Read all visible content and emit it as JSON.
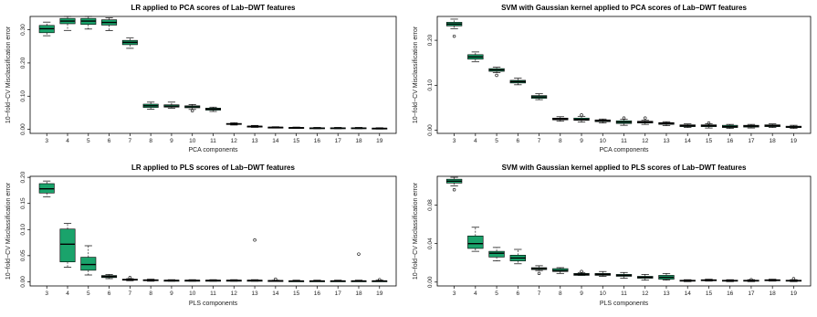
{
  "chart_data": [
    {
      "type": "boxplot",
      "title": "LR applied to PCA scores of Lab−DWT features",
      "xlabel": "PCA components",
      "ylabel": "10−fold−CV Misclassification error",
      "categories": [
        "3",
        "4",
        "5",
        "6",
        "7",
        "8",
        "9",
        "10",
        "11",
        "12",
        "13",
        "14",
        "15",
        "16",
        "17",
        "18",
        "19"
      ],
      "yticks": [
        0.0,
        0.1,
        0.2,
        0.3
      ],
      "ytick_labels": [
        "0.00",
        "0.10",
        "0.20",
        "0.30"
      ],
      "ylim": [
        -0.012,
        0.34
      ],
      "fill": "#1aa36b",
      "boxes": [
        {
          "x": "3",
          "min": 0.282,
          "q1": 0.291,
          "median": 0.303,
          "q3": 0.313,
          "max": 0.323,
          "outliers": []
        },
        {
          "x": "4",
          "min": 0.298,
          "q1": 0.318,
          "median": 0.326,
          "q3": 0.334,
          "max": 0.34,
          "outliers": []
        },
        {
          "x": "5",
          "min": 0.302,
          "q1": 0.316,
          "median": 0.326,
          "q3": 0.334,
          "max": 0.34,
          "outliers": []
        },
        {
          "x": "6",
          "min": 0.297,
          "q1": 0.314,
          "median": 0.322,
          "q3": 0.33,
          "max": 0.336,
          "outliers": []
        },
        {
          "x": "7",
          "min": 0.244,
          "q1": 0.255,
          "median": 0.262,
          "q3": 0.268,
          "max": 0.276,
          "outliers": []
        },
        {
          "x": "8",
          "min": 0.061,
          "q1": 0.066,
          "median": 0.071,
          "q3": 0.076,
          "max": 0.082,
          "outliers": []
        },
        {
          "x": "9",
          "min": 0.064,
          "q1": 0.067,
          "median": 0.07,
          "q3": 0.074,
          "max": 0.082,
          "outliers": []
        },
        {
          "x": "10",
          "min": 0.06,
          "q1": 0.065,
          "median": 0.068,
          "q3": 0.071,
          "max": 0.075,
          "outliers": [
            0.056
          ]
        },
        {
          "x": "11",
          "min": 0.054,
          "q1": 0.058,
          "median": 0.061,
          "q3": 0.064,
          "max": 0.067,
          "outliers": []
        },
        {
          "x": "12",
          "min": 0.013,
          "q1": 0.015,
          "median": 0.016,
          "q3": 0.018,
          "max": 0.02,
          "outliers": []
        },
        {
          "x": "13",
          "min": 0.006,
          "q1": 0.008,
          "median": 0.009,
          "q3": 0.01,
          "max": 0.012,
          "outliers": []
        },
        {
          "x": "14",
          "min": 0.004,
          "q1": 0.005,
          "median": 0.006,
          "q3": 0.007,
          "max": 0.008,
          "outliers": []
        },
        {
          "x": "15",
          "min": 0.003,
          "q1": 0.004,
          "median": 0.005,
          "q3": 0.006,
          "max": 0.007,
          "outliers": []
        },
        {
          "x": "16",
          "min": 0.002,
          "q1": 0.003,
          "median": 0.004,
          "q3": 0.005,
          "max": 0.006,
          "outliers": []
        },
        {
          "x": "17",
          "min": 0.002,
          "q1": 0.003,
          "median": 0.004,
          "q3": 0.005,
          "max": 0.006,
          "outliers": []
        },
        {
          "x": "18",
          "min": 0.002,
          "q1": 0.003,
          "median": 0.004,
          "q3": 0.005,
          "max": 0.006,
          "outliers": []
        },
        {
          "x": "19",
          "min": 0.001,
          "q1": 0.002,
          "median": 0.003,
          "q3": 0.004,
          "max": 0.005,
          "outliers": []
        }
      ]
    },
    {
      "type": "boxplot",
      "title": "SVM with Gaussian kernel applied to PCA scores of Lab−DWT features",
      "xlabel": "PCA components",
      "ylabel": "10−fold−CV Misclassification error",
      "categories": [
        "3",
        "4",
        "5",
        "6",
        "7",
        "8",
        "9",
        "10",
        "11",
        "12",
        "13",
        "14",
        "15",
        "16",
        "17",
        "18",
        "19"
      ],
      "yticks": [
        0.0,
        0.1,
        0.2
      ],
      "ytick_labels": [
        "0.00",
        "0.10",
        "0.20"
      ],
      "ylim": [
        -0.007,
        0.253
      ],
      "fill": "#1aa36b",
      "boxes": [
        {
          "x": "3",
          "min": 0.226,
          "q1": 0.232,
          "median": 0.236,
          "q3": 0.24,
          "max": 0.247,
          "outliers": [
            0.209
          ]
        },
        {
          "x": "4",
          "min": 0.152,
          "q1": 0.158,
          "median": 0.163,
          "q3": 0.168,
          "max": 0.174,
          "outliers": []
        },
        {
          "x": "5",
          "min": 0.128,
          "q1": 0.131,
          "median": 0.134,
          "q3": 0.137,
          "max": 0.14,
          "outliers": [
            0.122
          ]
        },
        {
          "x": "6",
          "min": 0.101,
          "q1": 0.105,
          "median": 0.108,
          "q3": 0.111,
          "max": 0.116,
          "outliers": []
        },
        {
          "x": "7",
          "min": 0.068,
          "q1": 0.071,
          "median": 0.074,
          "q3": 0.077,
          "max": 0.081,
          "outliers": []
        },
        {
          "x": "8",
          "min": 0.02,
          "q1": 0.023,
          "median": 0.025,
          "q3": 0.027,
          "max": 0.03,
          "outliers": []
        },
        {
          "x": "9",
          "min": 0.018,
          "q1": 0.022,
          "median": 0.024,
          "q3": 0.027,
          "max": 0.031,
          "outliers": [
            0.034
          ]
        },
        {
          "x": "10",
          "min": 0.016,
          "q1": 0.019,
          "median": 0.021,
          "q3": 0.023,
          "max": 0.025,
          "outliers": []
        },
        {
          "x": "11",
          "min": 0.011,
          "q1": 0.015,
          "median": 0.018,
          "q3": 0.021,
          "max": 0.024,
          "outliers": [
            0.027
          ]
        },
        {
          "x": "12",
          "min": 0.013,
          "q1": 0.016,
          "median": 0.018,
          "q3": 0.02,
          "max": 0.022,
          "outliers": [
            0.027
          ]
        },
        {
          "x": "13",
          "min": 0.01,
          "q1": 0.013,
          "median": 0.015,
          "q3": 0.017,
          "max": 0.019,
          "outliers": []
        },
        {
          "x": "14",
          "min": 0.006,
          "q1": 0.008,
          "median": 0.01,
          "q3": 0.012,
          "max": 0.014,
          "outliers": []
        },
        {
          "x": "15",
          "min": 0.005,
          "q1": 0.008,
          "median": 0.01,
          "q3": 0.012,
          "max": 0.014,
          "outliers": [
            0.016
          ]
        },
        {
          "x": "16",
          "min": 0.004,
          "q1": 0.006,
          "median": 0.008,
          "q3": 0.011,
          "max": 0.013,
          "outliers": []
        },
        {
          "x": "17",
          "min": 0.005,
          "q1": 0.007,
          "median": 0.009,
          "q3": 0.011,
          "max": 0.013,
          "outliers": []
        },
        {
          "x": "18",
          "min": 0.006,
          "q1": 0.008,
          "median": 0.01,
          "q3": 0.012,
          "max": 0.014,
          "outliers": []
        },
        {
          "x": "19",
          "min": 0.004,
          "q1": 0.006,
          "median": 0.007,
          "q3": 0.009,
          "max": 0.011,
          "outliers": []
        }
      ]
    },
    {
      "type": "boxplot",
      "title": "LR applied to PLS scores of Lab−DWT features",
      "xlabel": "PLS components",
      "ylabel": "10−fold−CV Misclassification error",
      "categories": [
        "3",
        "4",
        "5",
        "6",
        "7",
        "8",
        "9",
        "10",
        "11",
        "12",
        "13",
        "14",
        "15",
        "16",
        "17",
        "18",
        "19"
      ],
      "yticks": [
        0.0,
        0.05,
        0.1,
        0.15,
        0.2
      ],
      "ytick_labels": [
        "0.00",
        "0.05",
        "0.10",
        "0.15",
        "0.20"
      ],
      "ylim": [
        -0.008,
        0.202
      ],
      "fill": "#1aa36b",
      "boxes": [
        {
          "x": "3",
          "min": 0.163,
          "q1": 0.17,
          "median": 0.178,
          "q3": 0.188,
          "max": 0.193,
          "outliers": []
        },
        {
          "x": "4",
          "min": 0.028,
          "q1": 0.038,
          "median": 0.072,
          "q3": 0.101,
          "max": 0.112,
          "outliers": []
        },
        {
          "x": "5",
          "min": 0.013,
          "q1": 0.022,
          "median": 0.033,
          "q3": 0.047,
          "max": 0.069,
          "outliers": []
        },
        {
          "x": "6",
          "min": 0.006,
          "q1": 0.008,
          "median": 0.01,
          "q3": 0.012,
          "max": 0.014,
          "outliers": []
        },
        {
          "x": "7",
          "min": 0.002,
          "q1": 0.003,
          "median": 0.004,
          "q3": 0.005,
          "max": 0.006,
          "outliers": [
            0.008
          ]
        },
        {
          "x": "8",
          "min": 0.001,
          "q1": 0.002,
          "median": 0.003,
          "q3": 0.004,
          "max": 0.005,
          "outliers": []
        },
        {
          "x": "9",
          "min": 0.001,
          "q1": 0.002,
          "median": 0.0025,
          "q3": 0.003,
          "max": 0.004,
          "outliers": []
        },
        {
          "x": "10",
          "min": 0.001,
          "q1": 0.002,
          "median": 0.0025,
          "q3": 0.003,
          "max": 0.004,
          "outliers": []
        },
        {
          "x": "11",
          "min": 0.001,
          "q1": 0.002,
          "median": 0.0025,
          "q3": 0.003,
          "max": 0.004,
          "outliers": []
        },
        {
          "x": "12",
          "min": 0.001,
          "q1": 0.002,
          "median": 0.0025,
          "q3": 0.003,
          "max": 0.004,
          "outliers": []
        },
        {
          "x": "13",
          "min": 0.001,
          "q1": 0.002,
          "median": 0.0025,
          "q3": 0.003,
          "max": 0.004,
          "outliers": [
            0.08
          ]
        },
        {
          "x": "14",
          "min": 0.001,
          "q1": 0.0015,
          "median": 0.002,
          "q3": 0.0025,
          "max": 0.003,
          "outliers": [
            0.005
          ]
        },
        {
          "x": "15",
          "min": 0.0005,
          "q1": 0.001,
          "median": 0.0015,
          "q3": 0.002,
          "max": 0.003,
          "outliers": []
        },
        {
          "x": "16",
          "min": 0.0005,
          "q1": 0.001,
          "median": 0.0015,
          "q3": 0.002,
          "max": 0.003,
          "outliers": []
        },
        {
          "x": "17",
          "min": 0.0005,
          "q1": 0.001,
          "median": 0.0015,
          "q3": 0.002,
          "max": 0.003,
          "outliers": []
        },
        {
          "x": "18",
          "min": 0.0005,
          "q1": 0.001,
          "median": 0.0015,
          "q3": 0.002,
          "max": 0.003,
          "outliers": [
            0.053
          ]
        },
        {
          "x": "19",
          "min": 0.0005,
          "q1": 0.001,
          "median": 0.0015,
          "q3": 0.002,
          "max": 0.003,
          "outliers": [
            0.004
          ]
        }
      ]
    },
    {
      "type": "boxplot",
      "title": "SVM with Gaussian kernel applied to PLS scores of Lab−DWT features",
      "xlabel": "PLS components",
      "ylabel": "10−fold−CV Misclassification error",
      "categories": [
        "3",
        "4",
        "5",
        "6",
        "7",
        "8",
        "9",
        "10",
        "11",
        "12",
        "13",
        "14",
        "15",
        "16",
        "17",
        "18",
        "19"
      ],
      "yticks": [
        0.0,
        0.04,
        0.08
      ],
      "ytick_labels": [
        "0.00",
        "0.04",
        "0.08"
      ],
      "ylim": [
        -0.004,
        0.11
      ],
      "fill": "#1aa36b",
      "boxes": [
        {
          "x": "3",
          "min": 0.1,
          "q1": 0.103,
          "median": 0.105,
          "q3": 0.107,
          "max": 0.109,
          "outliers": [
            0.096
          ]
        },
        {
          "x": "4",
          "min": 0.032,
          "q1": 0.035,
          "median": 0.04,
          "q3": 0.048,
          "max": 0.057,
          "outliers": []
        },
        {
          "x": "5",
          "min": 0.022,
          "q1": 0.026,
          "median": 0.03,
          "q3": 0.032,
          "max": 0.036,
          "outliers": []
        },
        {
          "x": "6",
          "min": 0.019,
          "q1": 0.022,
          "median": 0.025,
          "q3": 0.028,
          "max": 0.034,
          "outliers": []
        },
        {
          "x": "7",
          "min": 0.012,
          "q1": 0.013,
          "median": 0.014,
          "q3": 0.015,
          "max": 0.017,
          "outliers": [
            0.009
          ]
        },
        {
          "x": "8",
          "min": 0.009,
          "q1": 0.011,
          "median": 0.012,
          "q3": 0.014,
          "max": 0.015,
          "outliers": []
        },
        {
          "x": "9",
          "min": 0.007,
          "q1": 0.007,
          "median": 0.008,
          "q3": 0.009,
          "max": 0.01,
          "outliers": [
            0.011
          ]
        },
        {
          "x": "10",
          "min": 0.006,
          "q1": 0.007,
          "median": 0.008,
          "q3": 0.009,
          "max": 0.011,
          "outliers": []
        },
        {
          "x": "11",
          "min": 0.004,
          "q1": 0.006,
          "median": 0.007,
          "q3": 0.008,
          "max": 0.01,
          "outliers": []
        },
        {
          "x": "12",
          "min": 0.002,
          "q1": 0.004,
          "median": 0.005,
          "q3": 0.006,
          "max": 0.008,
          "outliers": []
        },
        {
          "x": "13",
          "min": 0.002,
          "q1": 0.003,
          "median": 0.005,
          "q3": 0.007,
          "max": 0.009,
          "outliers": []
        },
        {
          "x": "14",
          "min": 0.0005,
          "q1": 0.001,
          "median": 0.0015,
          "q3": 0.002,
          "max": 0.0025,
          "outliers": []
        },
        {
          "x": "15",
          "min": 0.001,
          "q1": 0.0015,
          "median": 0.002,
          "q3": 0.0025,
          "max": 0.003,
          "outliers": []
        },
        {
          "x": "16",
          "min": 0.0005,
          "q1": 0.001,
          "median": 0.0015,
          "q3": 0.002,
          "max": 0.0025,
          "outliers": []
        },
        {
          "x": "17",
          "min": 0.0005,
          "q1": 0.001,
          "median": 0.0015,
          "q3": 0.002,
          "max": 0.0025,
          "outliers": [
            0.0025
          ]
        },
        {
          "x": "18",
          "min": 0.001,
          "q1": 0.0015,
          "median": 0.002,
          "q3": 0.0025,
          "max": 0.003,
          "outliers": []
        },
        {
          "x": "19",
          "min": 0.0005,
          "q1": 0.001,
          "median": 0.0015,
          "q3": 0.002,
          "max": 0.0025,
          "outliers": [
            0.0035
          ]
        }
      ]
    }
  ]
}
